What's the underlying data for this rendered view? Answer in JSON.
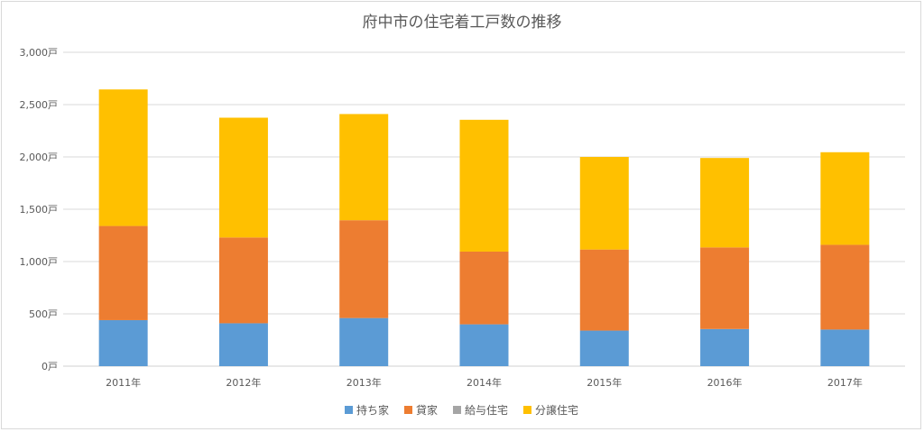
{
  "chart_data": {
    "type": "bar",
    "stacked": true,
    "title": "府中市の住宅着工戸数の推移",
    "categories": [
      "2011年",
      "2012年",
      "2013年",
      "2014年",
      "2015年",
      "2016年",
      "2017年"
    ],
    "y_ticks": [
      "0戸",
      "500戸",
      "1,000戸",
      "1,500戸",
      "2,000戸",
      "2,500戸",
      "3,000戸"
    ],
    "ylim": [
      0,
      3000
    ],
    "grid": true,
    "legend_position": "bottom",
    "series": [
      {
        "name": "持ち家",
        "color": "#5b9bd5",
        "values": [
          440,
          410,
          460,
          400,
          340,
          355,
          350
        ]
      },
      {
        "name": "貸家",
        "color": "#ed7d31",
        "values": [
          900,
          820,
          935,
          695,
          775,
          780,
          810
        ]
      },
      {
        "name": "給与住宅",
        "color": "#a5a5a5",
        "values": [
          0,
          0,
          0,
          0,
          0,
          0,
          0
        ]
      },
      {
        "name": "分譲住宅",
        "color": "#ffc000",
        "values": [
          1305,
          1145,
          1015,
          1260,
          885,
          855,
          885
        ]
      }
    ]
  }
}
